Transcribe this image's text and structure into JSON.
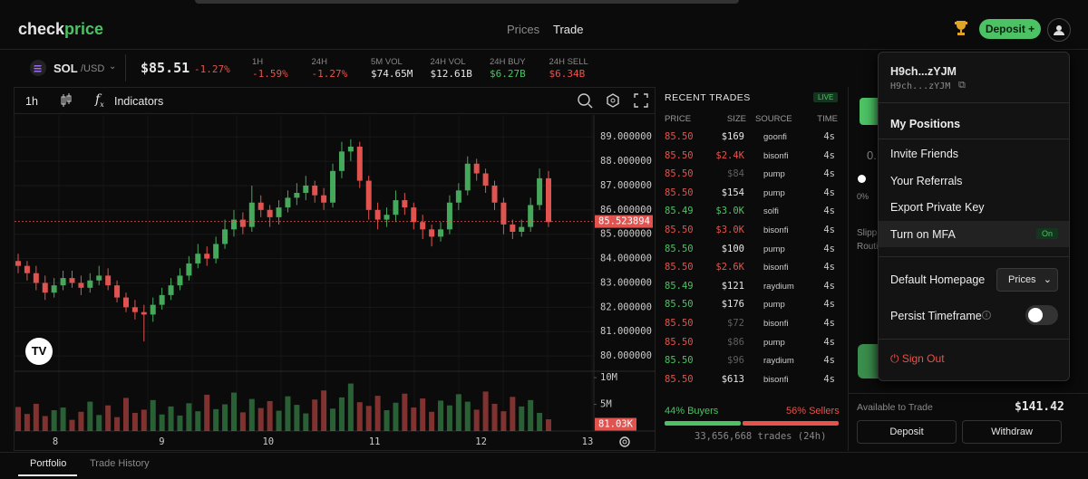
{
  "header": {
    "logo_a": "check",
    "logo_b": "price",
    "nav": [
      "Prices",
      "Trade"
    ],
    "deposit": "Deposit +"
  },
  "ticker": {
    "symbol": "SOL",
    "pair": "/USD",
    "price": "$85.51",
    "change": "-1.27%",
    "stats": [
      {
        "label": "1H",
        "value": "-1.59%",
        "tone": "down"
      },
      {
        "label": "24H",
        "value": "-1.27%",
        "tone": "down"
      },
      {
        "label": "5M VOL",
        "value": "$74.65M",
        "tone": "flat"
      },
      {
        "label": "24H VOL",
        "value": "$12.61B",
        "tone": "flat"
      },
      {
        "label": "24H BUY",
        "value": "$6.27B",
        "tone": "up"
      },
      {
        "label": "24H SELL",
        "value": "$6.34B",
        "tone": "down"
      }
    ]
  },
  "toolbar": {
    "interval": "1h",
    "indicators": "Indicators"
  },
  "chart_data": {
    "type": "candlestick",
    "up_color": "#45a85a",
    "down_color": "#e0534f",
    "open": [
      83.9,
      83.7,
      83.4,
      83.0,
      82.6,
      82.9,
      83.2,
      83.0,
      82.8,
      83.1,
      83.3,
      82.9,
      82.4,
      82.0,
      81.8,
      81.7,
      82.1,
      82.5,
      82.9,
      83.3,
      83.8,
      84.2,
      84.0,
      84.6,
      85.2,
      85.6,
      85.3,
      86.3,
      86.0,
      85.7,
      86.1,
      86.5,
      86.7,
      87.0,
      86.6,
      86.3,
      87.6,
      88.4,
      88.6,
      87.2,
      86.0,
      85.6,
      85.8,
      86.4,
      86.1,
      85.5,
      85.2,
      84.9,
      85.2,
      86.3,
      86.8,
      87.9,
      87.5,
      87.0,
      86.3,
      85.4,
      85.1,
      85.3,
      86.2,
      87.3
    ],
    "high": [
      84.2,
      83.9,
      83.7,
      83.3,
      83.2,
      83.5,
      83.5,
      83.3,
      83.4,
      83.7,
      83.6,
      83.1,
      82.6,
      82.3,
      82.1,
      82.4,
      82.8,
      83.2,
      83.6,
      84.1,
      84.6,
      84.5,
      84.9,
      85.6,
      86.0,
      85.9,
      87.0,
      86.6,
      86.2,
      86.4,
      86.8,
      87.1,
      87.4,
      87.2,
      86.9,
      87.9,
      88.8,
      88.9,
      88.8,
      87.4,
      86.3,
      86.1,
      86.8,
      86.7,
      86.3,
      85.8,
      85.4,
      85.5,
      86.6,
      87.1,
      88.2,
      88.1,
      87.7,
      87.2,
      86.5,
      85.6,
      85.6,
      86.5,
      87.7,
      87.6
    ],
    "low": [
      83.4,
      83.1,
      82.7,
      82.3,
      82.4,
      82.7,
      82.8,
      82.5,
      82.6,
      82.9,
      82.7,
      82.2,
      81.8,
      81.5,
      80.6,
      81.4,
      81.9,
      82.3,
      82.7,
      83.1,
      83.6,
      83.7,
      83.8,
      84.4,
      84.9,
      85.0,
      85.1,
      85.7,
      85.3,
      85.4,
      85.9,
      86.2,
      86.4,
      86.3,
      86.0,
      86.1,
      87.3,
      88.0,
      86.9,
      85.6,
      85.2,
      85.3,
      85.5,
      85.8,
      85.2,
      84.8,
      84.5,
      84.7,
      85.0,
      86.0,
      86.6,
      87.2,
      86.7,
      86.0,
      85.0,
      84.8,
      84.9,
      85.1,
      86.0,
      85.3
    ],
    "close": [
      83.7,
      83.4,
      83.0,
      82.6,
      82.9,
      83.2,
      83.0,
      82.8,
      83.1,
      83.3,
      82.9,
      82.4,
      82.0,
      81.8,
      81.7,
      82.1,
      82.5,
      82.9,
      83.3,
      83.8,
      84.2,
      84.0,
      84.6,
      85.2,
      85.6,
      85.3,
      86.3,
      86.0,
      85.7,
      86.1,
      86.5,
      86.7,
      87.0,
      86.6,
      86.3,
      87.6,
      88.4,
      88.6,
      87.2,
      86.0,
      85.6,
      85.8,
      86.4,
      86.1,
      85.5,
      85.2,
      84.9,
      85.2,
      86.3,
      86.8,
      87.9,
      87.5,
      87.0,
      86.3,
      85.4,
      85.1,
      85.3,
      86.2,
      87.3,
      85.5
    ],
    "ylim": [
      79.37,
      89.9
    ],
    "yticks": [
      {
        "value": 80,
        "label": "80.000000"
      },
      {
        "value": 81,
        "label": "81.000000"
      },
      {
        "value": 82,
        "label": "82.000000"
      },
      {
        "value": 83,
        "label": "83.000000"
      },
      {
        "value": 84,
        "label": "84.000000"
      },
      {
        "value": 85,
        "label": "85.000000"
      },
      {
        "value": 86,
        "label": "86.000000"
      },
      {
        "value": 87,
        "label": "87.000000"
      },
      {
        "value": 88,
        "label": "88.000000"
      },
      {
        "value": 89,
        "label": "89.000000"
      }
    ],
    "last_price": 85.523894,
    "volume": {
      "values": [
        4.5,
        3.2,
        5.1,
        2.8,
        3.9,
        4.4,
        2.1,
        3.6,
        5.5,
        3.0,
        4.8,
        2.6,
        6.2,
        3.4,
        4.0,
        5.8,
        3.1,
        4.6,
        2.9,
        5.2,
        3.7,
        6.8,
        4.1,
        5.0,
        7.2,
        3.5,
        6.0,
        4.3,
        5.6,
        3.8,
        6.5,
        4.9,
        3.3,
        5.9,
        7.6,
        4.2,
        6.3,
        8.9,
        5.4,
        4.7,
        6.6,
        3.9,
        5.3,
        7.0,
        4.4,
        6.1,
        3.6,
        5.7,
        4.8,
        6.9,
        5.5,
        4.0,
        7.4,
        5.1,
        3.7,
        6.4,
        4.6,
        5.8,
        3.4,
        2.2
      ],
      "ylim": [
        0,
        11.2
      ],
      "yticks": [
        {
          "value": 5,
          "label": "5M"
        },
        {
          "value": 10,
          "label": "10M"
        }
      ],
      "last": {
        "value": 0.08103,
        "label": "81.03K"
      }
    },
    "date_labels": [
      8,
      9,
      10,
      11,
      12,
      13
    ]
  },
  "recent_trades": {
    "title": "RECENT TRADES",
    "live": "LIVE",
    "columns": [
      "PRICE",
      "SIZE",
      "SOURCE",
      "TIME"
    ],
    "rows": [
      {
        "price": "85.50",
        "size": "$169",
        "source": "goonfi",
        "time": "4s",
        "side": "sell",
        "size_style": "normal"
      },
      {
        "price": "85.50",
        "size": "$2.4K",
        "source": "bisonfi",
        "time": "4s",
        "side": "sell",
        "size_style": "big"
      },
      {
        "price": "85.50",
        "size": "$84",
        "source": "pump",
        "time": "4s",
        "side": "sell",
        "size_style": "small"
      },
      {
        "price": "85.50",
        "size": "$154",
        "source": "pump",
        "time": "4s",
        "side": "sell",
        "size_style": "normal"
      },
      {
        "price": "85.49",
        "size": "$3.0K",
        "source": "solfi",
        "time": "4s",
        "side": "buy",
        "size_style": "big"
      },
      {
        "price": "85.50",
        "size": "$3.0K",
        "source": "bisonfi",
        "time": "4s",
        "side": "sell",
        "size_style": "big"
      },
      {
        "price": "85.50",
        "size": "$100",
        "source": "pump",
        "time": "4s",
        "side": "buy",
        "size_style": "normal"
      },
      {
        "price": "85.50",
        "size": "$2.6K",
        "source": "bisonfi",
        "time": "4s",
        "side": "sell",
        "size_style": "big"
      },
      {
        "price": "85.49",
        "size": "$121",
        "source": "raydium",
        "time": "4s",
        "side": "buy",
        "size_style": "normal"
      },
      {
        "price": "85.50",
        "size": "$176",
        "source": "pump",
        "time": "4s",
        "side": "buy",
        "size_style": "normal"
      },
      {
        "price": "85.50",
        "size": "$72",
        "source": "bisonfi",
        "time": "4s",
        "side": "sell",
        "size_style": "small"
      },
      {
        "price": "85.50",
        "size": "$86",
        "source": "pump",
        "time": "4s",
        "side": "sell",
        "size_style": "small"
      },
      {
        "price": "85.50",
        "size": "$96",
        "source": "raydium",
        "time": "4s",
        "side": "buy",
        "size_style": "small"
      },
      {
        "price": "85.50",
        "size": "$613",
        "source": "bisonfi",
        "time": "4s",
        "side": "sell",
        "size_style": "normal"
      }
    ],
    "buyers": {
      "value": 44,
      "label": "44% Buyers"
    },
    "sellers": {
      "value": 56,
      "label": "56% Sellers"
    },
    "footer": "33,656,668 trades (24h)"
  },
  "trade_panel": {
    "amount": "0.",
    "pct": "0%",
    "slip": "Slipp",
    "route": "Routi",
    "available_label": "Available to Trade",
    "available": "$141.42",
    "deposit": "Deposit",
    "withdraw": "Withdraw"
  },
  "menu": {
    "name": "H9ch...zYJM",
    "address": "H9ch...zYJM",
    "items": [
      "My Positions",
      "Invite Friends",
      "Your Referrals",
      "Export Private Key",
      "Turn on MFA"
    ],
    "mfa": "On",
    "homepage_label": "Default Homepage",
    "homepage": "Prices",
    "persist": "Persist Timeframe",
    "signout": "Sign Out"
  },
  "tabs": [
    "Portfolio",
    "Trade History"
  ]
}
